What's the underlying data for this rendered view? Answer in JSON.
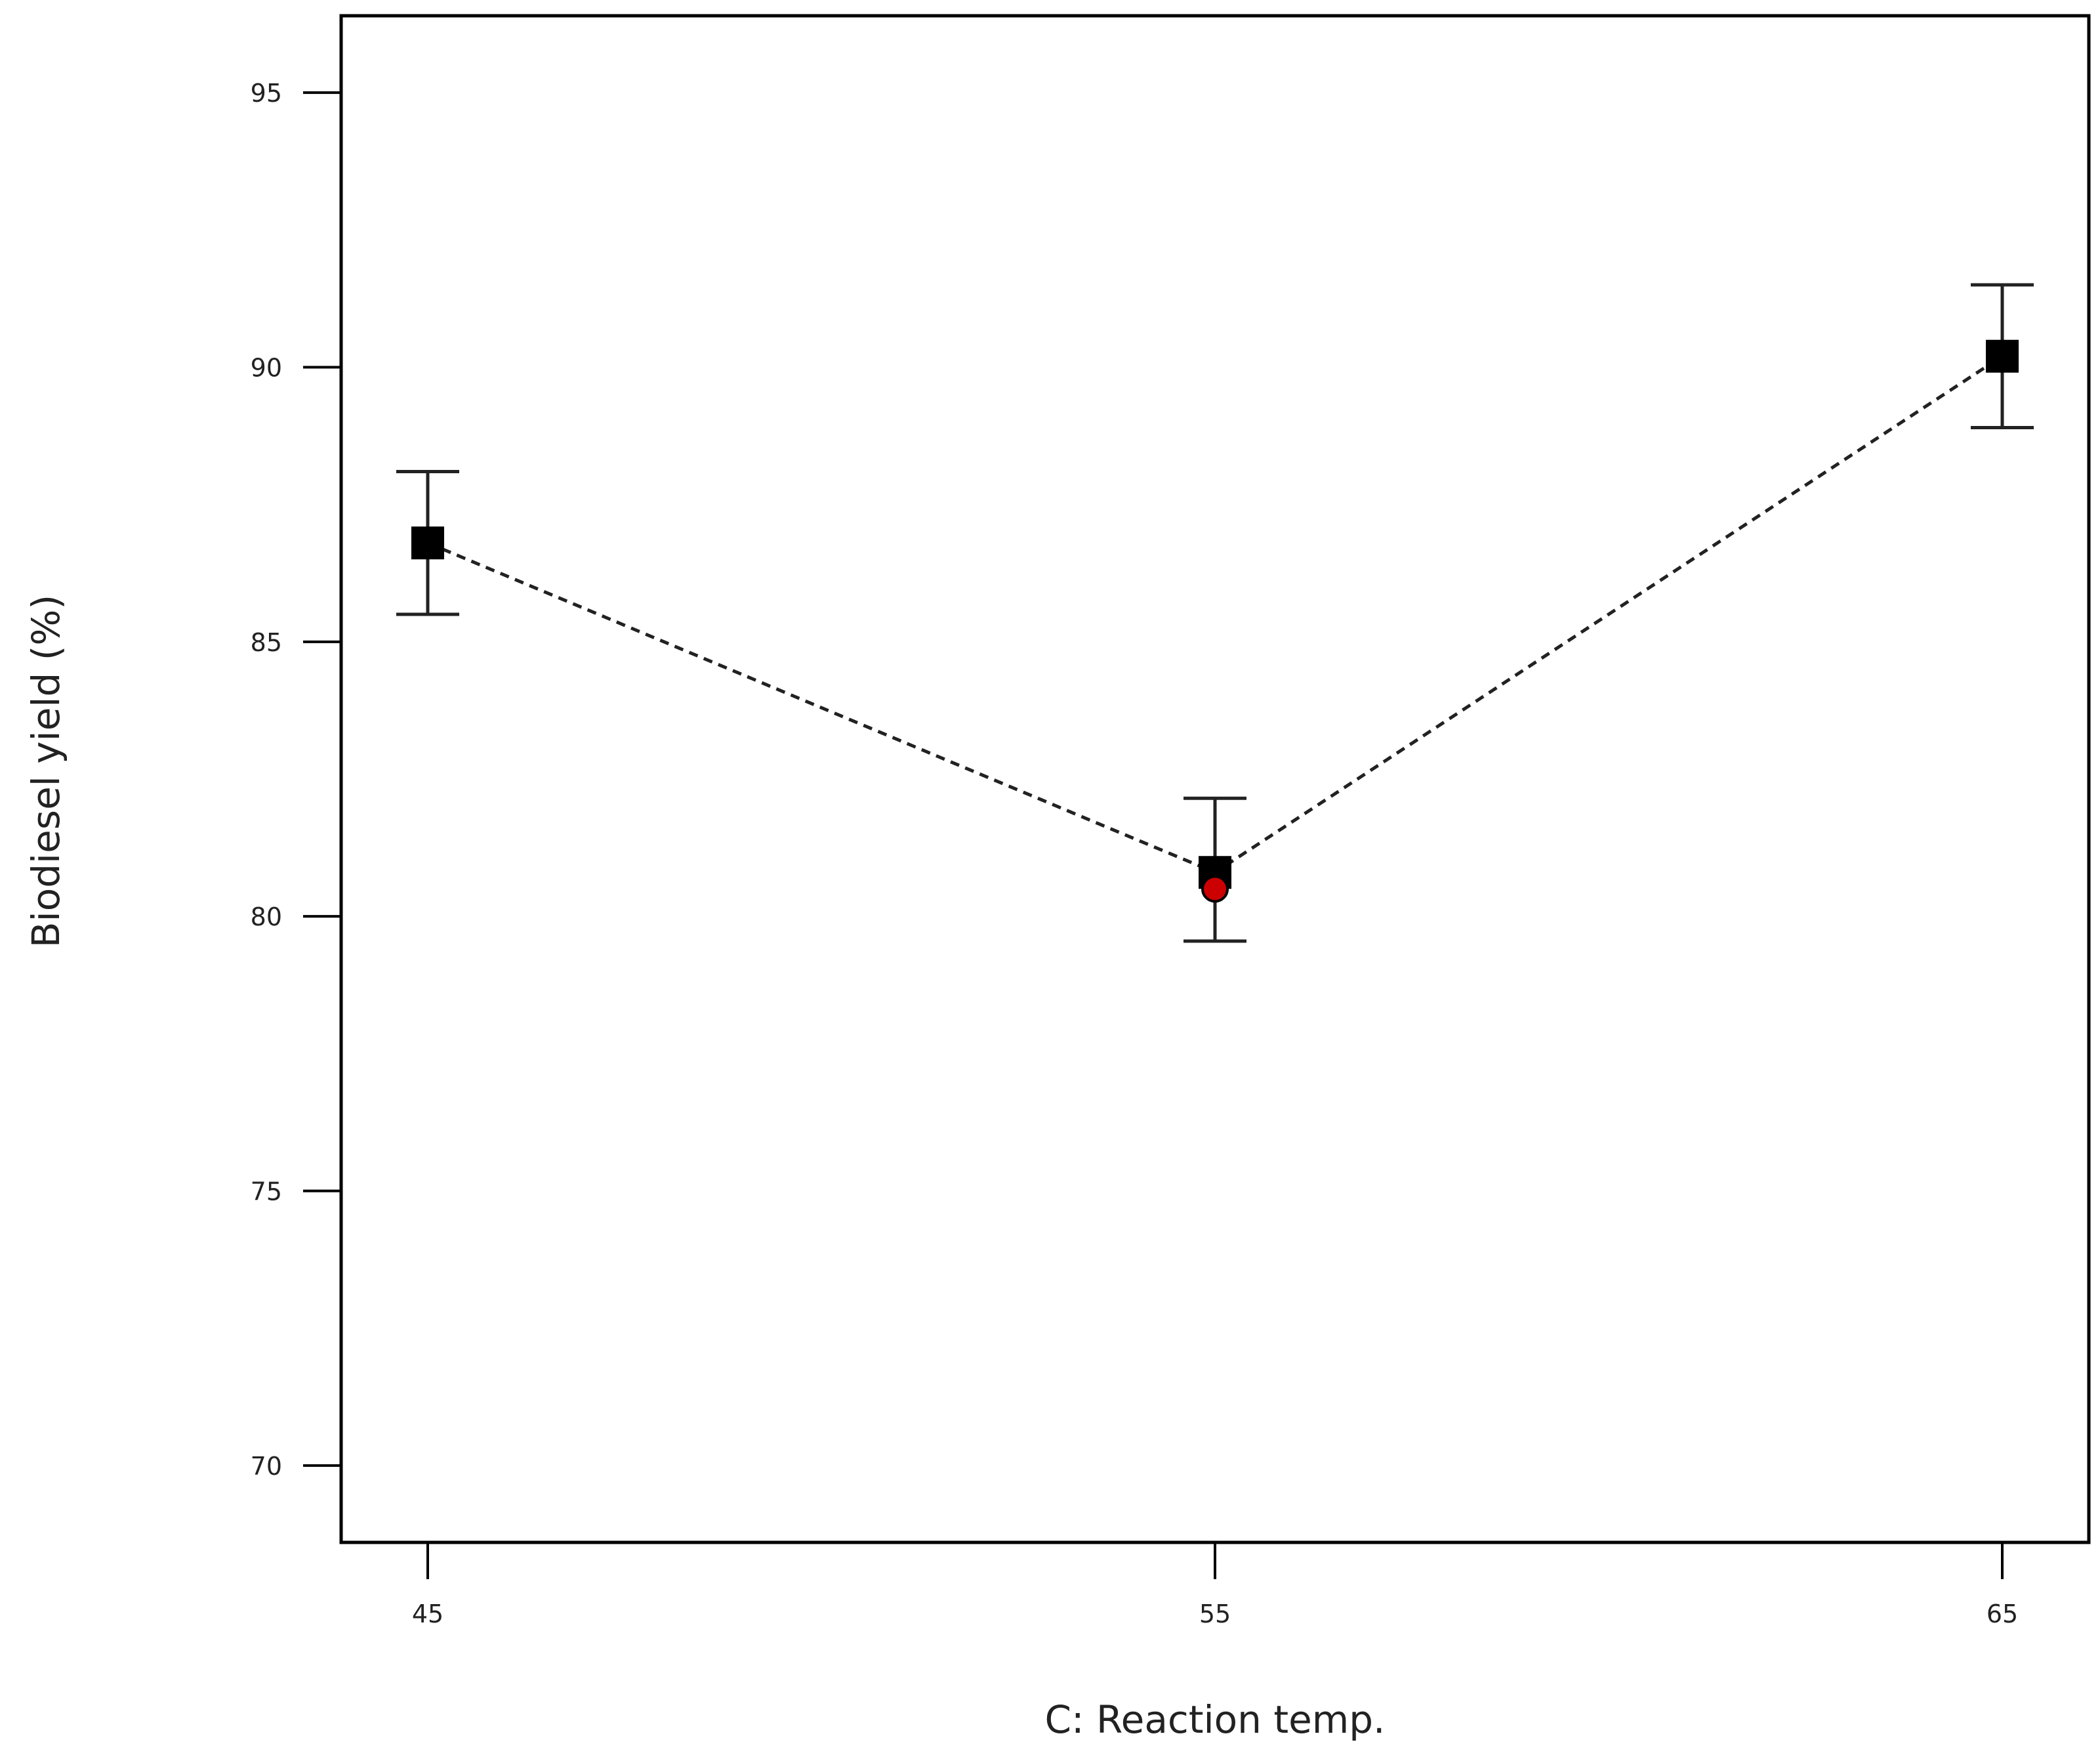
{
  "chart_data": {
    "type": "scatter",
    "xlabel": "C: Reaction temp.",
    "ylabel": "Biodiesel yield (%)",
    "x_ticks": [
      45,
      55,
      65
    ],
    "y_ticks": [
      70,
      75,
      80,
      85,
      90,
      95
    ],
    "xlim": [
      43.9,
      66.1
    ],
    "ylim": [
      68.6,
      96.4
    ],
    "grid": false,
    "legend": "none",
    "series": [
      {
        "x": [
          45,
          55,
          65
        ],
        "y": [
          86.8,
          80.8,
          90.2
        ],
        "y_lower": [
          85.5,
          79.55,
          88.9
        ],
        "y_upper": [
          88.1,
          82.15,
          91.5
        ],
        "marker": "square",
        "line_style": "dashed",
        "color": "#000000"
      },
      {
        "x": [
          55
        ],
        "y": [
          80.5
        ],
        "marker": "circle",
        "color": "#cc0000"
      }
    ]
  }
}
